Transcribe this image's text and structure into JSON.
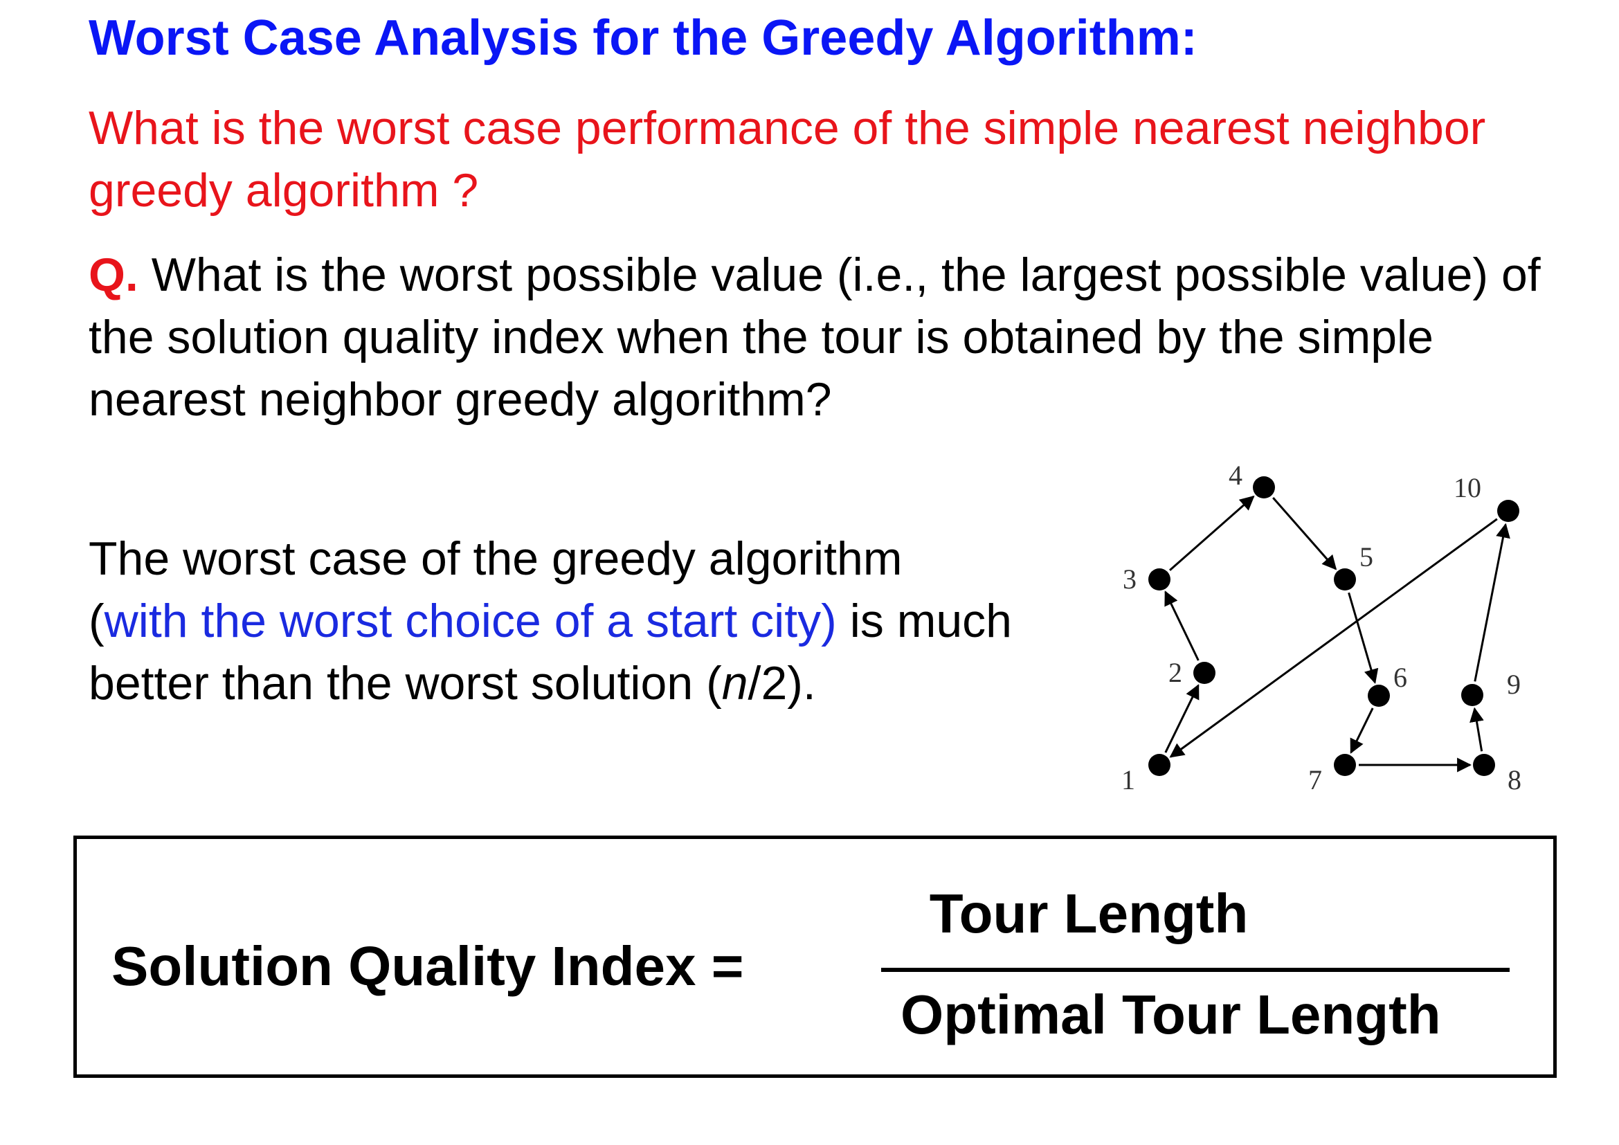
{
  "heading": {
    "title": "Worst Case Analysis for the Greedy Algorithm:"
  },
  "question_red": "What is the worst case performance of the simple nearest neighbor greedy algorithm ?",
  "q_block": {
    "label": "Q.",
    "text": " What is the worst possible value (i.e., the largest possible value) of the solution quality index when the tour is obtained by the simple nearest neighbor greedy algorithm?"
  },
  "worst_case": {
    "part1": "The worst case of the greedy algorithm",
    "paren_open": "(",
    "blue": "with the worst choice of a start city)",
    "part2": " is much better than the worst solution (",
    "n": "n",
    "part3": "/2)."
  },
  "formula": {
    "lhs": "Solution Quality Index  =",
    "numerator": "Tour Length",
    "denominator": "Optimal Tour Length"
  },
  "tour_graph": {
    "nodes": [
      {
        "id": "1",
        "label": "1"
      },
      {
        "id": "2",
        "label": "2"
      },
      {
        "id": "3",
        "label": "3"
      },
      {
        "id": "4",
        "label": "4"
      },
      {
        "id": "5",
        "label": "5"
      },
      {
        "id": "6",
        "label": "6"
      },
      {
        "id": "7",
        "label": "7"
      },
      {
        "id": "8",
        "label": "8"
      },
      {
        "id": "9",
        "label": "9"
      },
      {
        "id": "10",
        "label": "10"
      }
    ],
    "edges": [
      {
        "from": "1",
        "to": "2"
      },
      {
        "from": "2",
        "to": "3"
      },
      {
        "from": "3",
        "to": "4"
      },
      {
        "from": "4",
        "to": "5"
      },
      {
        "from": "5",
        "to": "6"
      },
      {
        "from": "6",
        "to": "7"
      },
      {
        "from": "7",
        "to": "8"
      },
      {
        "from": "8",
        "to": "9"
      },
      {
        "from": "9",
        "to": "10"
      },
      {
        "from": "10",
        "to": "1"
      }
    ]
  }
}
